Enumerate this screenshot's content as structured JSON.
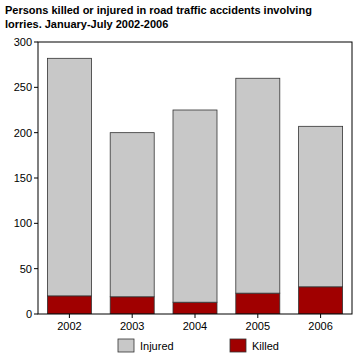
{
  "chart_data": {
    "type": "bar",
    "stacked": true,
    "title": "Persons killed or injured in road traffic accidents involving lorries. January-July 2002-2006",
    "categories": [
      "2002",
      "2003",
      "2004",
      "2005",
      "2006"
    ],
    "series": [
      {
        "name": "Killed",
        "color": "#a00000",
        "values": [
          20,
          19,
          13,
          23,
          30
        ]
      },
      {
        "name": "Injured",
        "color": "#c8c8c8",
        "values": [
          262,
          181,
          212,
          237,
          177
        ]
      }
    ],
    "ylim": [
      0,
      300
    ],
    "yticks": [
      0,
      50,
      100,
      150,
      200,
      250,
      300
    ],
    "grid": false,
    "legend": "bottom"
  }
}
